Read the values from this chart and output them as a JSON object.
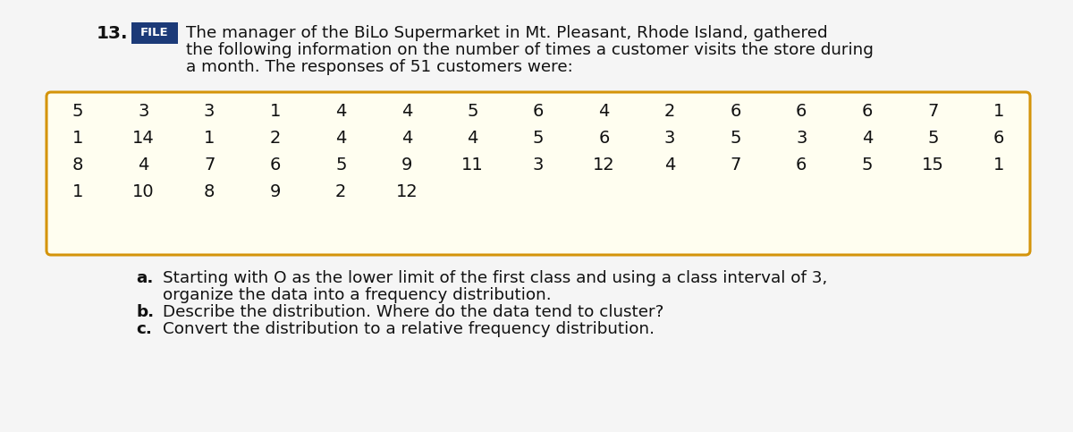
{
  "problem_number": "13.",
  "file_label": "FILE",
  "file_bg_color": "#1c3a78",
  "file_text_color": "#ffffff",
  "intro_text_line1": "The manager of the BiLo Supermarket in Mt. Pleasant, Rhode Island, gathered",
  "intro_text_line2": "the following information on the number of times a customer visits the store during",
  "intro_text_line3": "a month. The responses of 51 customers were:",
  "data_rows": [
    [
      5,
      3,
      3,
      1,
      4,
      4,
      5,
      6,
      4,
      2,
      6,
      6,
      6,
      7,
      1
    ],
    [
      1,
      14,
      1,
      2,
      4,
      4,
      4,
      5,
      6,
      3,
      5,
      3,
      4,
      5,
      6
    ],
    [
      8,
      4,
      7,
      6,
      5,
      9,
      11,
      3,
      12,
      4,
      7,
      6,
      5,
      15,
      1
    ],
    [
      1,
      10,
      8,
      9,
      2,
      12
    ]
  ],
  "box_bg_color": "#fffef0",
  "box_border_color": "#d4940a",
  "question_labels": [
    "a.",
    "b.",
    "c."
  ],
  "question_texts": [
    [
      "Starting with O as the lower limit of the first class and using a class interval of 3,",
      "organize the data into a frequency distribution."
    ],
    [
      "Describe the distribution. Where do the data tend to cluster?"
    ],
    [
      "Convert the distribution to a relative frequency distribution."
    ]
  ],
  "bg_color": "#f5f5f5",
  "font_size_intro": 13.2,
  "font_size_data": 14.0,
  "font_size_questions": 13.2,
  "font_size_problem": 14.5,
  "font_size_file": 9.5
}
